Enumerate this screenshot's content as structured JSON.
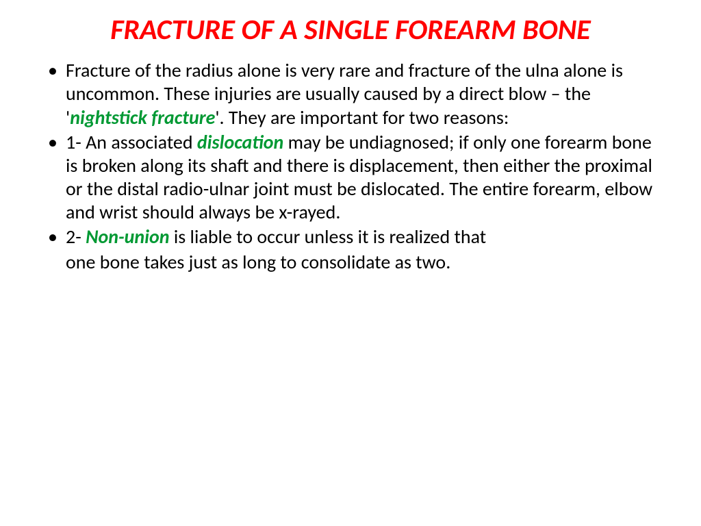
{
  "title": {
    "text": "FRACTURE OF A SINGLE FOREARM BONE",
    "color": "#ff0000",
    "fontsize": 42
  },
  "body": {
    "color": "#000000",
    "keyword_color": "#009933",
    "fontsize": 28
  },
  "bullets": [
    {
      "segments": [
        {
          "t": "Fracture of the radius alone is very rare and fracture of the ulna alone is uncommon. These injuries are usually caused by a direct blow – the '",
          "k": false
        },
        {
          "t": "nightstick fracture",
          "k": true
        },
        {
          "t": "'. They are important for two reasons:",
          "k": false
        }
      ]
    },
    {
      "segments": [
        {
          "t": "1- An associated ",
          "k": false
        },
        {
          "t": "dislocation",
          "k": true
        },
        {
          "t": " may be undiagnosed; if only one forearm bone is broken along its shaft and there is displacement, then either the proximal or the distal radio-ulnar joint must be dislocated. The entire forearm, elbow and wrist should always be x-rayed.",
          "k": false
        }
      ]
    },
    {
      "segments": [
        {
          "t": "2- ",
          "k": false
        },
        {
          "t": "Non-union",
          "k": true
        },
        {
          "t": " is liable to occur unless it is realized that",
          "k": false
        }
      ]
    }
  ],
  "continuation": {
    "segments": [
      {
        "t": "one bone takes just as long to consolidate as two.",
        "k": false
      }
    ]
  }
}
